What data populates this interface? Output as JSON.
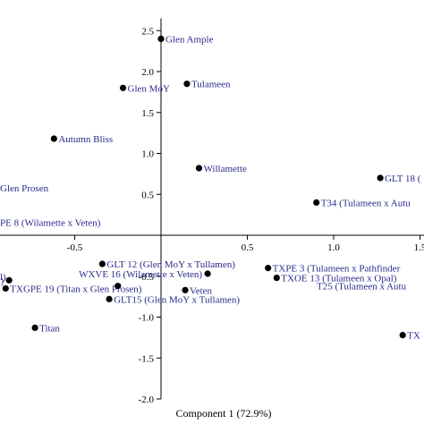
{
  "chart_data": {
    "type": "scatter",
    "xlabel": "Component 1 (72.9%)",
    "ylabel": "",
    "xlim": [
      -0.98,
      1.55
    ],
    "ylim": [
      -2.0,
      2.65
    ],
    "x_ticks": [
      {
        "value": -0.5,
        "label": "-0.5"
      },
      {
        "value": 0.5,
        "label": "0.5"
      },
      {
        "value": 1.0,
        "label": "1.0"
      },
      {
        "value": 1.5,
        "label": "1.5"
      }
    ],
    "y_ticks": [
      {
        "value": 2.5,
        "label": "2.5"
      },
      {
        "value": 2.0,
        "label": "2.0"
      },
      {
        "value": 1.5,
        "label": "1.5"
      },
      {
        "value": 1.0,
        "label": "1.0"
      },
      {
        "value": 0.5,
        "label": "0.5"
      },
      {
        "value": -0.5,
        "label": "-0.5"
      },
      {
        "value": -1.0,
        "label": "-1.0"
      },
      {
        "value": -1.5,
        "label": "-1.5"
      },
      {
        "value": -2.0,
        "label": "-2.0"
      }
    ],
    "points": [
      {
        "x": 0.0,
        "y": 2.4,
        "label": "Glen Ample",
        "anchor": "start"
      },
      {
        "x": -0.22,
        "y": 1.8,
        "label": "Glen MoY",
        "anchor": "start"
      },
      {
        "x": 0.15,
        "y": 1.85,
        "label": "Tulameen",
        "anchor": "start"
      },
      {
        "x": -0.62,
        "y": 1.18,
        "label": "Autumn Bliss",
        "anchor": "start"
      },
      {
        "x": 0.22,
        "y": 0.82,
        "label": "Willamette",
        "anchor": "start"
      },
      {
        "x": null,
        "y": 0.58,
        "label": "Glen Prosen",
        "anchor": "start"
      },
      {
        "x": 1.27,
        "y": 0.7,
        "label": "GLT 18 (",
        "anchor": "start"
      },
      {
        "x": 0.9,
        "y": 0.4,
        "label": "T34 (Tulameen x Autu",
        "anchor": "start"
      },
      {
        "x": null,
        "y": 0.16,
        "label": "PE 8 (Wilamette x Veten)",
        "anchor": "start"
      },
      {
        "x": -0.34,
        "y": -0.35,
        "label": "GLT 12 (Glen MoY x Tullamen)",
        "anchor": "start"
      },
      {
        "x": 0.27,
        "y": -0.47,
        "label": "WXVE 16 (Wilamette x Veten)",
        "anchor": "end"
      },
      {
        "x": 0.62,
        "y": -0.4,
        "label": "TXPE 3 (Tulameen x Pathfinder",
        "anchor": "start"
      },
      {
        "x": 0.67,
        "y": -0.52,
        "label": "TXOE 13 (Tulameen x Opal)",
        "anchor": "start"
      },
      {
        "x": -0.88,
        "y": -0.55,
        "label": "en)",
        "anchor": "end"
      },
      {
        "x": -0.9,
        "y": -0.65,
        "label": "TXGPE 19 (Titan x Glen Prosen)",
        "anchor": "start"
      },
      {
        "x": -0.25,
        "y": -0.62,
        "label": "",
        "anchor": "start"
      },
      {
        "x": 0.14,
        "y": -0.67,
        "label": "Veten",
        "anchor": "start"
      },
      {
        "x": null,
        "y": -0.62,
        "label": "T25 (Tulameen x Autu",
        "anchor": "start"
      },
      {
        "x": -0.3,
        "y": -0.78,
        "label": "GLT15 (Glen MoY x Tullamen)",
        "anchor": "start"
      },
      {
        "x": -0.73,
        "y": -1.13,
        "label": "Titan",
        "anchor": "start"
      },
      {
        "x": 1.4,
        "y": -1.22,
        "label": "TX",
        "anchor": "start"
      }
    ],
    "extra_labels": [
      {
        "x": -0.98,
        "y": -0.5,
        "label": "l)"
      }
    ]
  }
}
